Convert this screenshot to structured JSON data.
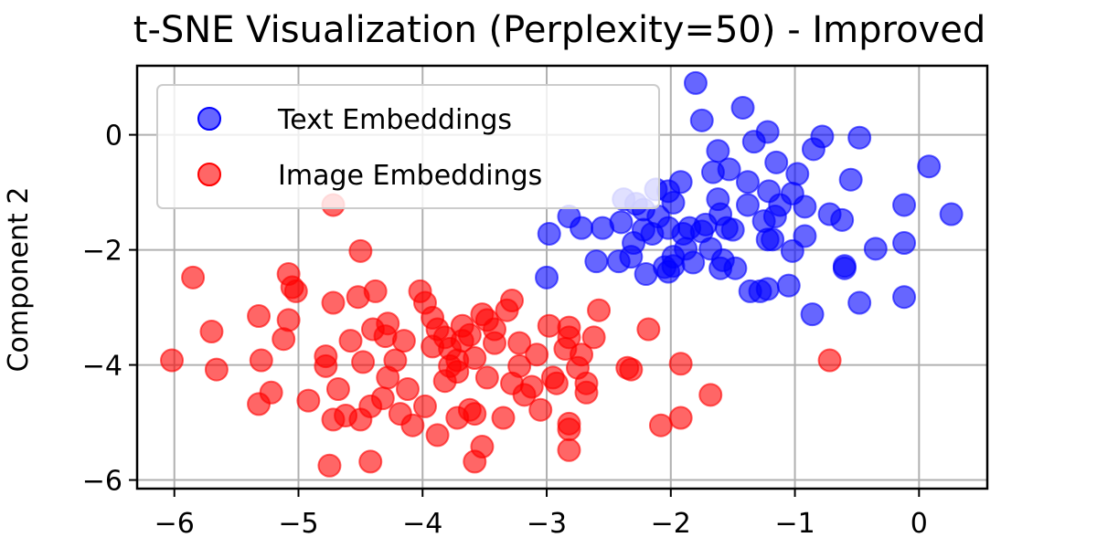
{
  "chart_data": {
    "type": "scatter",
    "title": "t-SNE Visualization (Perplexity=50) - Improved",
    "xlabel": "",
    "ylabel": "Component 2",
    "xlim": [
      -6.3,
      0.55
    ],
    "ylim": [
      -6.15,
      1.2
    ],
    "xticks": [
      -6,
      -5,
      -4,
      -3,
      -2,
      -1,
      0
    ],
    "yticks": [
      -6,
      -4,
      -2,
      0
    ],
    "xtick_labels": [
      "−6",
      "−5",
      "−4",
      "−3",
      "−2",
      "−1",
      "0"
    ],
    "ytick_labels": [
      "−6",
      "−4",
      "−2",
      "0"
    ],
    "grid": true,
    "legend_position": "upper-left",
    "series": [
      {
        "name": "Text Embeddings",
        "color": "#0000ff",
        "points": [
          [
            -1.8,
            0.9
          ],
          [
            -1.42,
            0.47
          ],
          [
            -1.22,
            0.05
          ],
          [
            -1.75,
            0.25
          ],
          [
            -1.62,
            -0.28
          ],
          [
            -1.33,
            -0.12
          ],
          [
            -1.15,
            -0.48
          ],
          [
            -0.78,
            -0.03
          ],
          [
            -0.48,
            -0.05
          ],
          [
            0.08,
            -0.55
          ],
          [
            -1.66,
            -0.65
          ],
          [
            -1.53,
            -0.6
          ],
          [
            -1.38,
            -0.82
          ],
          [
            -1.21,
            -0.98
          ],
          [
            -0.98,
            -0.68
          ],
          [
            -0.55,
            -0.78
          ],
          [
            -1.02,
            -1.02
          ],
          [
            -1.12,
            -1.22
          ],
          [
            -1.62,
            -1.12
          ],
          [
            -1.6,
            -1.38
          ],
          [
            -1.72,
            -1.56
          ],
          [
            -1.55,
            -1.62
          ],
          [
            -1.38,
            -1.22
          ],
          [
            -1.25,
            -1.5
          ],
          [
            -1.16,
            -1.42
          ],
          [
            -0.92,
            -1.25
          ],
          [
            -0.72,
            -1.38
          ],
          [
            -0.62,
            -1.48
          ],
          [
            -0.12,
            -1.22
          ],
          [
            0.26,
            -1.38
          ],
          [
            -0.92,
            -1.76
          ],
          [
            -1.18,
            -1.82
          ],
          [
            -1.02,
            -2.02
          ],
          [
            -1.22,
            -1.82
          ],
          [
            -0.35,
            -1.98
          ],
          [
            -0.12,
            -1.88
          ],
          [
            -1.68,
            -1.98
          ],
          [
            -1.58,
            -2.18
          ],
          [
            -1.48,
            -2.32
          ],
          [
            -1.6,
            -2.32
          ],
          [
            -1.82,
            -2.22
          ],
          [
            -1.88,
            -1.98
          ],
          [
            -1.98,
            -2.12
          ],
          [
            -2.02,
            -2.38
          ],
          [
            -2.2,
            -2.42
          ],
          [
            -2.32,
            -2.12
          ],
          [
            -2.42,
            -2.2
          ],
          [
            -2.55,
            -1.62
          ],
          [
            -2.72,
            -1.62
          ],
          [
            -2.82,
            -1.42
          ],
          [
            -2.98,
            -1.72
          ],
          [
            -2.22,
            -1.65
          ],
          [
            -2.3,
            -1.88
          ],
          [
            -2.4,
            -1.52
          ],
          [
            -2.1,
            -1.42
          ],
          [
            -1.98,
            -1.18
          ],
          [
            -2.02,
            -0.98
          ],
          [
            -1.92,
            -0.82
          ],
          [
            -2.12,
            -0.95
          ],
          [
            -1.85,
            -1.62
          ],
          [
            -1.9,
            -1.72
          ],
          [
            -2.02,
            -1.62
          ],
          [
            -1.98,
            -2.28
          ],
          [
            -2.05,
            -2.3
          ],
          [
            -1.36,
            -2.72
          ],
          [
            -1.22,
            -2.68
          ],
          [
            -0.86,
            -3.12
          ],
          [
            -0.6,
            -2.32
          ],
          [
            -0.6,
            -2.28
          ],
          [
            -0.48,
            -2.92
          ],
          [
            -0.12,
            -2.82
          ],
          [
            -1.05,
            -2.62
          ],
          [
            -3.0,
            -2.48
          ],
          [
            -2.38,
            -1.12
          ],
          [
            -2.28,
            -1.2
          ],
          [
            -2.22,
            -1.3
          ],
          [
            -2.15,
            -1.72
          ],
          [
            -1.75,
            -1.68
          ],
          [
            -1.28,
            -2.72
          ],
          [
            -0.85,
            -0.25
          ],
          [
            -1.5,
            -1.65
          ],
          [
            -2.6,
            -2.2
          ]
        ]
      },
      {
        "name": "Image Embeddings",
        "color": "#ff0000",
        "points": [
          [
            -6.02,
            -3.92
          ],
          [
            -5.85,
            -2.48
          ],
          [
            -5.7,
            -3.42
          ],
          [
            -5.66,
            -4.08
          ],
          [
            -5.32,
            -3.15
          ],
          [
            -5.3,
            -3.92
          ],
          [
            -5.32,
            -4.68
          ],
          [
            -5.22,
            -4.48
          ],
          [
            -5.08,
            -2.42
          ],
          [
            -5.05,
            -2.65
          ],
          [
            -5.02,
            -2.72
          ],
          [
            -5.08,
            -3.22
          ],
          [
            -5.12,
            -3.55
          ],
          [
            -4.92,
            -4.62
          ],
          [
            -4.72,
            -1.22
          ],
          [
            -4.72,
            -2.92
          ],
          [
            -4.78,
            -3.85
          ],
          [
            -4.78,
            -4.02
          ],
          [
            -4.72,
            -4.95
          ],
          [
            -4.75,
            -5.75
          ],
          [
            -4.68,
            -4.42
          ],
          [
            -4.58,
            -3.58
          ],
          [
            -4.5,
            -2.02
          ],
          [
            -4.52,
            -2.82
          ],
          [
            -4.48,
            -3.95
          ],
          [
            -4.5,
            -4.95
          ],
          [
            -4.42,
            -4.72
          ],
          [
            -4.42,
            -5.68
          ],
          [
            -4.4,
            -3.38
          ],
          [
            -4.38,
            -2.72
          ],
          [
            -4.28,
            -3.28
          ],
          [
            -4.3,
            -3.5
          ],
          [
            -4.28,
            -4.22
          ],
          [
            -4.22,
            -3.92
          ],
          [
            -4.15,
            -3.58
          ],
          [
            -4.18,
            -4.85
          ],
          [
            -4.12,
            -4.42
          ],
          [
            -4.08,
            -5.05
          ],
          [
            -4.02,
            -2.72
          ],
          [
            -3.98,
            -2.92
          ],
          [
            -3.92,
            -3.18
          ],
          [
            -3.88,
            -3.38
          ],
          [
            -3.82,
            -3.52
          ],
          [
            -3.78,
            -3.72
          ],
          [
            -3.72,
            -3.92
          ],
          [
            -3.72,
            -4.12
          ],
          [
            -3.82,
            -4.28
          ],
          [
            -3.98,
            -4.72
          ],
          [
            -3.88,
            -5.22
          ],
          [
            -3.72,
            -4.92
          ],
          [
            -3.68,
            -3.32
          ],
          [
            -3.62,
            -3.48
          ],
          [
            -3.58,
            -3.88
          ],
          [
            -3.62,
            -4.78
          ],
          [
            -3.58,
            -4.85
          ],
          [
            -3.52,
            -3.12
          ],
          [
            -3.48,
            -3.22
          ],
          [
            -3.42,
            -3.38
          ],
          [
            -3.42,
            -3.62
          ],
          [
            -3.48,
            -4.22
          ],
          [
            -3.52,
            -5.42
          ],
          [
            -3.58,
            -5.68
          ],
          [
            -3.32,
            -3.05
          ],
          [
            -3.28,
            -2.88
          ],
          [
            -3.22,
            -3.62
          ],
          [
            -3.22,
            -4.02
          ],
          [
            -3.28,
            -4.32
          ],
          [
            -3.18,
            -4.52
          ],
          [
            -3.08,
            -3.82
          ],
          [
            -3.05,
            -4.78
          ],
          [
            -2.98,
            -3.32
          ],
          [
            -2.95,
            -4.22
          ],
          [
            -2.92,
            -4.32
          ],
          [
            -2.85,
            -3.72
          ],
          [
            -2.82,
            -3.35
          ],
          [
            -2.82,
            -3.52
          ],
          [
            -2.82,
            -5.02
          ],
          [
            -2.82,
            -5.12
          ],
          [
            -2.82,
            -5.48
          ],
          [
            -2.72,
            -3.82
          ],
          [
            -2.68,
            -4.32
          ],
          [
            -2.68,
            -4.48
          ],
          [
            -2.62,
            -3.52
          ],
          [
            -2.58,
            -3.05
          ],
          [
            -2.35,
            -4.05
          ],
          [
            -2.32,
            -4.08
          ],
          [
            -2.18,
            -3.38
          ],
          [
            -2.08,
            -5.05
          ],
          [
            -1.92,
            -4.92
          ],
          [
            -1.92,
            -3.98
          ],
          [
            -1.68,
            -4.52
          ],
          [
            -0.72,
            -3.92
          ],
          [
            -4.62,
            -4.88
          ],
          [
            -4.32,
            -4.58
          ],
          [
            -3.92,
            -3.68
          ],
          [
            -3.78,
            -4.02
          ],
          [
            -3.68,
            -3.58
          ],
          [
            -3.35,
            -4.92
          ],
          [
            -3.12,
            -4.38
          ],
          [
            -2.75,
            -4.05
          ]
        ]
      }
    ]
  }
}
